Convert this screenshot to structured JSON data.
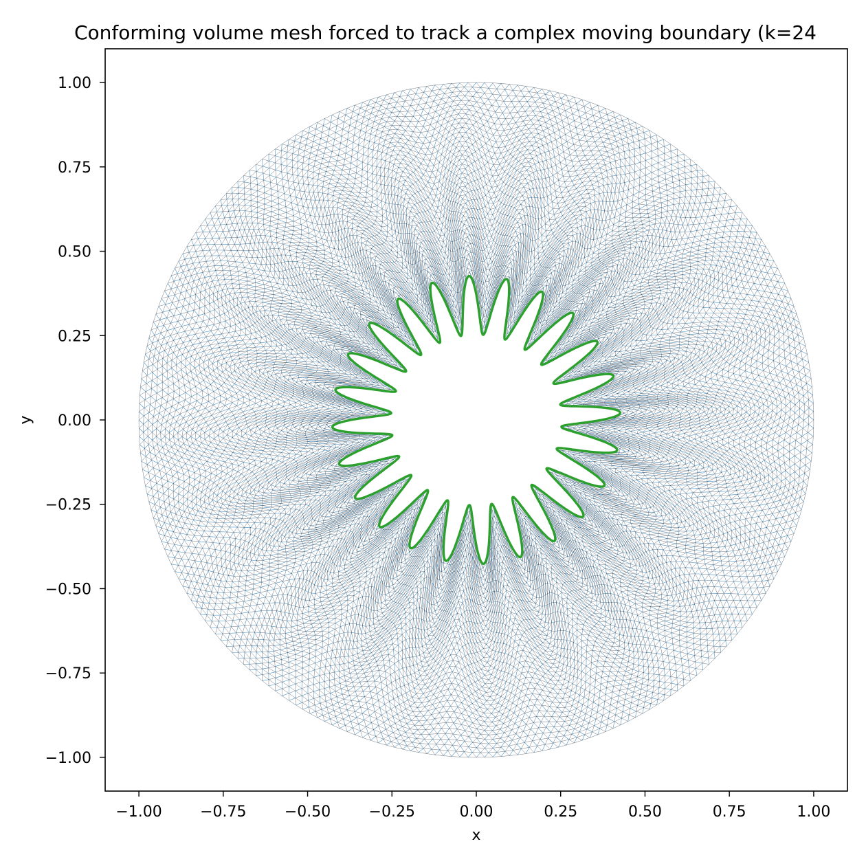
{
  "chart_data": {
    "type": "mesh",
    "title": "Conforming volume mesh forced to track a complex moving boundary (k=24",
    "xlabel": "x",
    "ylabel": "y",
    "xlim": [
      -1.1,
      1.1
    ],
    "ylim": [
      -1.1,
      1.1
    ],
    "xticks": [
      -1.0,
      -0.75,
      -0.5,
      -0.25,
      0.0,
      0.25,
      0.5,
      0.75,
      1.0
    ],
    "yticks": [
      -1.0,
      -0.75,
      -0.5,
      -0.25,
      0.0,
      0.25,
      0.5,
      0.75,
      1.0
    ],
    "xtick_labels": [
      "−1.00",
      "−0.75",
      "−0.50",
      "−0.25",
      "0.00",
      "0.25",
      "0.50",
      "0.75",
      "1.00"
    ],
    "ytick_labels": [
      "−1.00",
      "−0.75",
      "−0.50",
      "−0.25",
      "0.00",
      "0.25",
      "0.50",
      "0.75",
      "1.00"
    ],
    "grid": false,
    "outer_radius": 1.0,
    "boundary": {
      "lobes": 24,
      "base_radius": 0.34,
      "amplitude": 0.087
    },
    "colors": {
      "mesh": "#1f77b4",
      "mesh_dark": "#1b2a3a",
      "boundary": "#2ca02c"
    }
  }
}
